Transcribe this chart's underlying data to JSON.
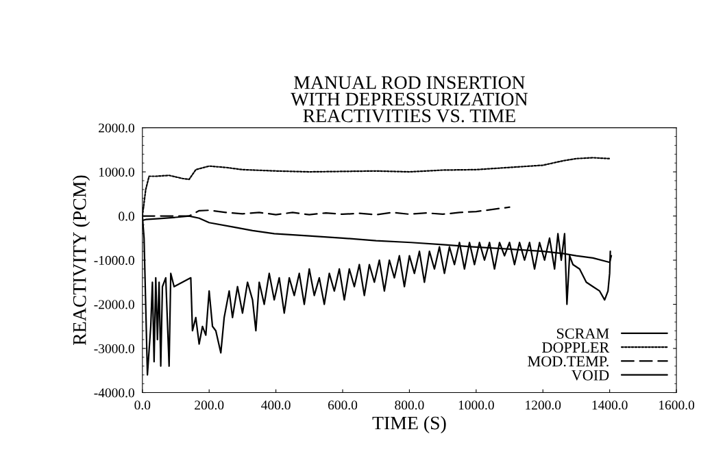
{
  "chart_data": {
    "type": "line",
    "title": "MANUAL ROD INSERTION\nWITH DEPRESSURIZATION\nREACTIVITIES VS. TIME",
    "xlabel": "TIME (S)",
    "ylabel": "REACTIVITY (PCM)",
    "xlim": [
      0,
      1600
    ],
    "ylim": [
      -4000,
      2000
    ],
    "xticks": [
      {
        "value": 0,
        "label": "0.0"
      },
      {
        "value": 200,
        "label": "200.0"
      },
      {
        "value": 400,
        "label": "400.0"
      },
      {
        "value": 600,
        "label": "600.0"
      },
      {
        "value": 800,
        "label": "800.0"
      },
      {
        "value": 1000,
        "label": "1000.0"
      },
      {
        "value": 1200,
        "label": "1200.0"
      },
      {
        "value": 1400,
        "label": "1400.0"
      },
      {
        "value": 1600,
        "label": "1600.0"
      }
    ],
    "yticks": [
      {
        "value": -4000,
        "label": "-4000.0"
      },
      {
        "value": -3000,
        "label": "-3000.0"
      },
      {
        "value": -2000,
        "label": "-2000.0"
      },
      {
        "value": -1000,
        "label": "-1000.0"
      },
      {
        "value": 0,
        "label": "0.0"
      },
      {
        "value": 1000,
        "label": "1000.0"
      },
      {
        "value": 2000,
        "label": "2000.0"
      }
    ],
    "grid": false,
    "legend": "bottom right",
    "series": [
      {
        "name": "SCRAM",
        "color": "#000000",
        "line_style": "solid",
        "x": [
          0,
          10,
          50,
          100,
          140,
          170,
          200,
          272,
          330,
          395,
          500,
          600,
          700,
          805,
          900,
          990,
          1100,
          1200,
          1260,
          1300,
          1350,
          1400,
          1405
        ],
        "values": [
          -100,
          -80,
          -60,
          -30,
          0,
          -50,
          -150,
          -250,
          -330,
          -400,
          -450,
          -500,
          -560,
          -600,
          -650,
          -700,
          -750,
          -800,
          -850,
          -900,
          -950,
          -1050,
          -900
        ]
      },
      {
        "name": "DOPPLER",
        "color": "#000000",
        "line_style": "dotted",
        "x": [
          0,
          10,
          20,
          40,
          80,
          120,
          140,
          160,
          200,
          250,
          300,
          400,
          500,
          600,
          700,
          800,
          900,
          1000,
          1100,
          1200,
          1260,
          1300,
          1350,
          1400
        ],
        "values": [
          0,
          600,
          900,
          900,
          920,
          850,
          830,
          1050,
          1130,
          1100,
          1050,
          1020,
          1000,
          1010,
          1020,
          1000,
          1040,
          1050,
          1100,
          1150,
          1250,
          1300,
          1320,
          1300
        ]
      },
      {
        "name": "MOD.TEMP.",
        "color": "#000000",
        "line_style": "dashed",
        "x": [
          0,
          50,
          100,
          140,
          170,
          200,
          250,
          300,
          350,
          400,
          450,
          500,
          550,
          600,
          650,
          700,
          750,
          800,
          850,
          900,
          950,
          1000,
          1050,
          1100
        ],
        "values": [
          0,
          0,
          0,
          0,
          120,
          130,
          80,
          50,
          80,
          30,
          80,
          30,
          70,
          40,
          60,
          30,
          80,
          40,
          70,
          40,
          80,
          100,
          150,
          200
        ]
      },
      {
        "name": "VOID",
        "color": "#000000",
        "line_style": "solid",
        "x": [
          0,
          5,
          15,
          25,
          30,
          35,
          40,
          45,
          50,
          55,
          60,
          70,
          80,
          85,
          95,
          120,
          145,
          150,
          160,
          170,
          180,
          190,
          200,
          210,
          220,
          235,
          245,
          260,
          270,
          285,
          300,
          315,
          330,
          340,
          350,
          365,
          380,
          395,
          410,
          425,
          440,
          455,
          470,
          485,
          500,
          515,
          530,
          545,
          560,
          575,
          590,
          605,
          620,
          635,
          650,
          665,
          680,
          695,
          710,
          725,
          740,
          755,
          770,
          785,
          800,
          815,
          830,
          845,
          860,
          875,
          890,
          905,
          920,
          935,
          950,
          965,
          980,
          995,
          1010,
          1025,
          1040,
          1055,
          1070,
          1085,
          1100,
          1115,
          1130,
          1145,
          1160,
          1175,
          1190,
          1205,
          1220,
          1235,
          1245,
          1255,
          1265,
          1272,
          1280,
          1290,
          1310,
          1330,
          1350,
          1370,
          1385,
          1395,
          1400,
          1402
        ],
        "values": [
          0,
          -500,
          -3600,
          -2500,
          -1500,
          -3300,
          -1400,
          -2800,
          -1500,
          -3400,
          -1600,
          -1400,
          -3400,
          -1300,
          -1600,
          -1500,
          -1400,
          -2600,
          -2300,
          -2900,
          -2500,
          -2700,
          -1700,
          -2500,
          -2600,
          -3100,
          -2300,
          -1700,
          -2300,
          -1600,
          -2200,
          -1500,
          -1900,
          -2600,
          -1500,
          -2000,
          -1300,
          -1900,
          -1400,
          -2200,
          -1400,
          -1800,
          -1300,
          -2000,
          -1200,
          -1800,
          -1400,
          -2000,
          -1300,
          -1700,
          -1200,
          -1900,
          -1200,
          -1600,
          -1100,
          -1800,
          -1100,
          -1500,
          -1000,
          -1700,
          -1000,
          -1400,
          -900,
          -1600,
          -900,
          -1300,
          -800,
          -1500,
          -800,
          -1200,
          -700,
          -1300,
          -700,
          -1100,
          -600,
          -1200,
          -600,
          -1100,
          -600,
          -1000,
          -600,
          -1200,
          -600,
          -900,
          -600,
          -1100,
          -600,
          -1000,
          -600,
          -1200,
          -600,
          -1000,
          -500,
          -1200,
          -400,
          -1000,
          -400,
          -2000,
          -900,
          -1100,
          -1200,
          -1500,
          -1600,
          -1700,
          -1900,
          -1700,
          -1300,
          -800
        ]
      }
    ]
  }
}
